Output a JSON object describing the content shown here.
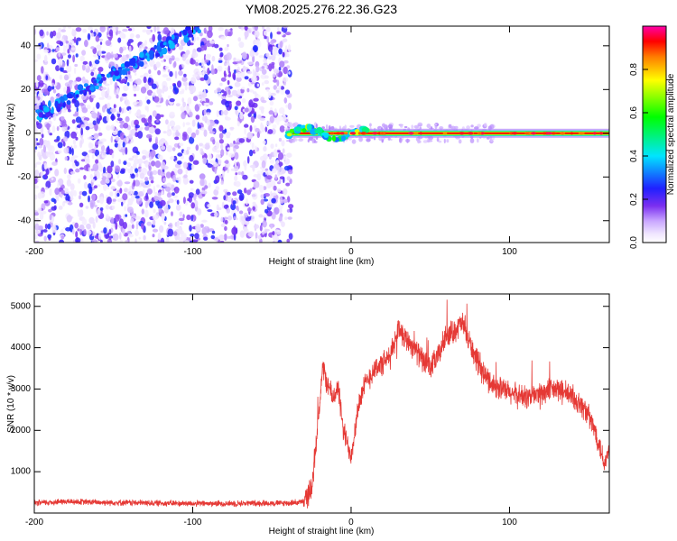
{
  "title": "YM08.2025.276.22.36.G23",
  "chart_data": [
    {
      "type": "heatmap",
      "title": "YM08.2025.276.22.36.G23",
      "xlabel": "Height of straight line (km)",
      "ylabel": "Frequency (Hz)",
      "xlim": [
        -200,
        163
      ],
      "ylim": [
        -50,
        49
      ],
      "x_ticks": [
        -200,
        -100,
        0,
        100
      ],
      "x_tick_labels": [
        "-200",
        "-100",
        "0",
        "100"
      ],
      "y_ticks": [
        -40,
        -20,
        0,
        20,
        40
      ],
      "y_tick_labels": [
        "-40",
        "-20",
        "0",
        "20",
        "40"
      ],
      "colorbar": {
        "label": "Normalized spectral amplitude",
        "range": [
          0,
          1
        ],
        "ticks": [
          0.0,
          0.2,
          0.4,
          0.6,
          0.8
        ],
        "tick_labels": [
          "0.0",
          "0.2",
          "0.4",
          "0.6",
          "0.8"
        ],
        "colormap": "rainbow (white-purple-blue-cyan-green-yellow-orange-red-magenta)"
      },
      "features": [
        {
          "name": "diagonal-trace",
          "x_range": [
            -198,
            -95
          ],
          "y_range": [
            8,
            49
          ],
          "amplitude": 0.3
        },
        {
          "name": "scattered-noise",
          "x_range": [
            -200,
            -38
          ],
          "y_range": [
            -50,
            49
          ],
          "amplitude": 0.1
        },
        {
          "name": "carrier-line",
          "x_range": [
            -40,
            163
          ],
          "frequency_hz": 0,
          "amplitude": 0.98
        }
      ]
    },
    {
      "type": "line",
      "xlabel": "Height of straight line (km)",
      "ylabel": "SNR (10 * v/v)",
      "xlim": [
        -200,
        163
      ],
      "ylim": [
        0,
        5300
      ],
      "x_ticks": [
        -200,
        -100,
        0,
        100
      ],
      "x_tick_labels": [
        "-200",
        "-100",
        "0",
        "100"
      ],
      "y_ticks": [
        1000,
        2000,
        3000,
        4000,
        5000
      ],
      "y_tick_labels": [
        "1000",
        "2000",
        "3000",
        "4000",
        "5000"
      ],
      "series": [
        {
          "name": "SNR",
          "color": "#e53935",
          "x": [
            -200,
            -180,
            -160,
            -140,
            -120,
            -100,
            -80,
            -60,
            -40,
            -30,
            -25,
            -22,
            -18,
            -12,
            -8,
            -5,
            0,
            5,
            10,
            15,
            20,
            25,
            30,
            35,
            40,
            45,
            50,
            55,
            60,
            65,
            70,
            75,
            80,
            85,
            90,
            95,
            100,
            110,
            120,
            130,
            140,
            148,
            155,
            160,
            163
          ],
          "values": [
            240,
            280,
            260,
            250,
            240,
            230,
            230,
            240,
            240,
            270,
            600,
            1700,
            3500,
            2800,
            3000,
            2000,
            1400,
            2700,
            3200,
            3500,
            3600,
            3800,
            4500,
            4200,
            4000,
            3700,
            3500,
            3800,
            4300,
            4400,
            4600,
            4100,
            3600,
            3300,
            3100,
            3000,
            2900,
            2800,
            2900,
            3000,
            2800,
            2500,
            1900,
            1200,
            1500
          ],
          "noise_amplitude": 350
        }
      ]
    }
  ]
}
